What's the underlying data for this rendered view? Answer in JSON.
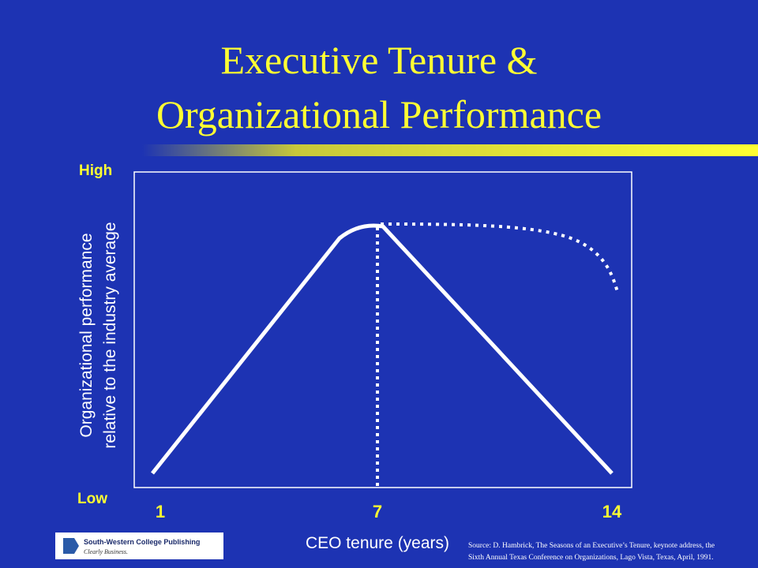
{
  "slide": {
    "title_line1": "Executive Tenure &",
    "title_line2": "Organizational Performance",
    "y_high": "High",
    "y_low": "Low",
    "y_label_line1": "Organizational performance",
    "y_label_line2": "relative to the industry average",
    "x_ticks": [
      "1",
      "7",
      "14"
    ],
    "x_label": "CEO tenure (years)",
    "source_line1": "Source: D. Hambrick, The Seasons of an Executive’s Tenure, keynote address, the",
    "source_line2": "Sixth Annual Texas Conference on Organizations, Lago Vista, Texas, April, 1991.",
    "logo_name": "South-Western College Publishing",
    "logo_tagline": "Clearly Business."
  }
}
